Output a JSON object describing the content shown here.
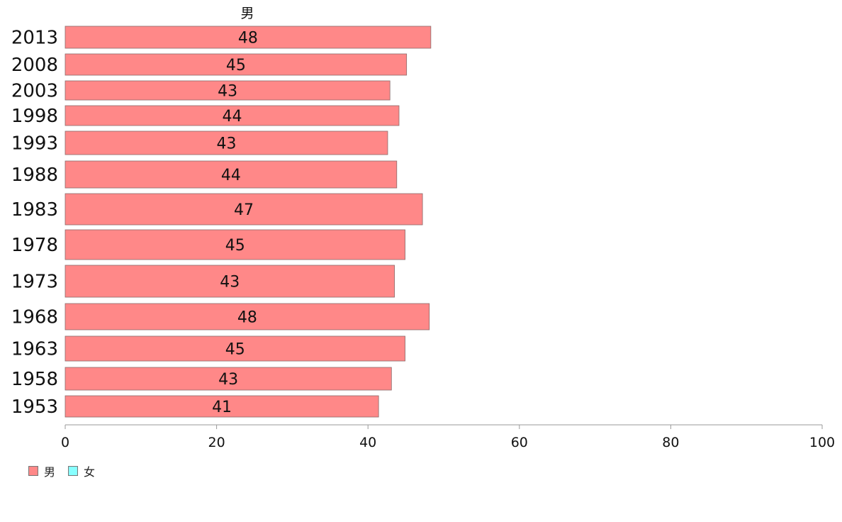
{
  "chart_data": {
    "type": "bar",
    "orientation": "horizontal",
    "title": "男",
    "categories": [
      "2013",
      "2008",
      "2003",
      "1998",
      "1993",
      "1988",
      "1983",
      "1978",
      "1973",
      "1968",
      "1963",
      "1958",
      "1953"
    ],
    "series": [
      {
        "name": "男",
        "color": "#ff8888",
        "values": [
          48.3,
          45.1,
          42.9,
          44.1,
          42.6,
          43.8,
          47.2,
          44.9,
          43.5,
          48.1,
          44.9,
          43.1,
          41.4
        ],
        "labels": [
          "48",
          "45",
          "43",
          "44",
          "43",
          "44",
          "47",
          "45",
          "43",
          "48",
          "45",
          "43",
          "41"
        ]
      }
    ],
    "xlim": [
      0,
      100
    ],
    "xticks": [
      "0",
      "20",
      "40",
      "60",
      "80",
      "100"
    ],
    "legend": {
      "position": "bottom-left",
      "items": [
        {
          "name": "男",
          "color": "#ff8888"
        },
        {
          "name": "女",
          "color": "#88ffff"
        }
      ]
    }
  }
}
